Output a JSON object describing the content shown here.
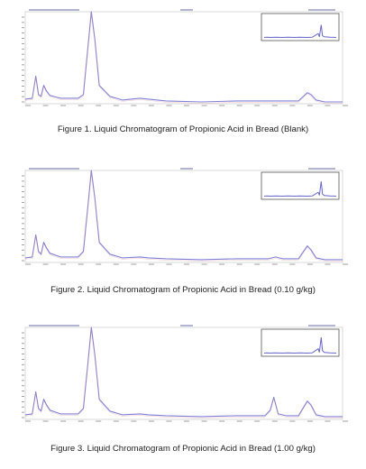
{
  "figures": [
    {
      "caption": "Figure 1. Liquid Chromatogram of Propionic Acid in Bread (Blank)",
      "chart_data": {
        "type": "line",
        "title": "",
        "xlabel": "",
        "ylabel": "",
        "xlim": [
          0,
          18
        ],
        "ylim": [
          0,
          100
        ],
        "series": [
          {
            "values": [
              [
                0,
                5
              ],
              [
                0.4,
                6
              ],
              [
                0.6,
                30
              ],
              [
                0.75,
                10
              ],
              [
                0.9,
                8
              ],
              [
                1.05,
                20
              ],
              [
                1.2,
                14
              ],
              [
                1.4,
                9
              ],
              [
                2,
                6
              ],
              [
                3,
                6
              ],
              [
                3.3,
                10
              ],
              [
                3.55,
                60
              ],
              [
                3.75,
                100
              ],
              [
                3.95,
                70
              ],
              [
                4.2,
                20
              ],
              [
                4.8,
                8
              ],
              [
                5.5,
                4
              ],
              [
                6.5,
                6
              ],
              [
                7,
                5
              ],
              [
                8,
                3
              ],
              [
                10,
                2
              ],
              [
                12,
                3
              ],
              [
                14,
                3
              ],
              [
                15.5,
                3
              ],
              [
                16,
                12
              ],
              [
                16.2,
                10
              ],
              [
                16.5,
                4
              ],
              [
                17,
                2
              ],
              [
                18,
                2
              ]
            ]
          }
        ],
        "inset": {
          "values": [
            [
              0,
              2
            ],
            [
              0.5,
              3
            ],
            [
              1,
              2
            ],
            [
              2,
              3
            ],
            [
              3,
              2
            ],
            [
              4,
              3
            ],
            [
              5,
              2
            ],
            [
              6,
              3
            ],
            [
              7,
              2
            ],
            [
              8,
              3
            ],
            [
              9,
              20
            ],
            [
              9.2,
              5
            ],
            [
              9.5,
              60
            ],
            [
              9.7,
              10
            ],
            [
              10,
              5
            ],
            [
              11,
              3
            ],
            [
              12,
              2
            ]
          ]
        }
      }
    },
    {
      "caption": "Figure 2. Liquid Chromatogram of Propionic Acid in Bread (0.10 g/kg)",
      "chart_data": {
        "type": "line",
        "title": "",
        "xlabel": "",
        "ylabel": "",
        "xlim": [
          0,
          18
        ],
        "ylim": [
          0,
          100
        ],
        "series": [
          {
            "values": [
              [
                0,
                5
              ],
              [
                0.4,
                6
              ],
              [
                0.6,
                30
              ],
              [
                0.75,
                12
              ],
              [
                0.9,
                9
              ],
              [
                1.05,
                22
              ],
              [
                1.2,
                16
              ],
              [
                1.4,
                10
              ],
              [
                2,
                6
              ],
              [
                3,
                6
              ],
              [
                3.3,
                12
              ],
              [
                3.55,
                60
              ],
              [
                3.75,
                100
              ],
              [
                3.95,
                70
              ],
              [
                4.2,
                22
              ],
              [
                4.8,
                9
              ],
              [
                5.5,
                5
              ],
              [
                6.5,
                6
              ],
              [
                7,
                5
              ],
              [
                8,
                4
              ],
              [
                10,
                3
              ],
              [
                12,
                4
              ],
              [
                13.8,
                4
              ],
              [
                14.2,
                6
              ],
              [
                14.6,
                4
              ],
              [
                15.5,
                4
              ],
              [
                16,
                18
              ],
              [
                16.2,
                14
              ],
              [
                16.5,
                5
              ],
              [
                17,
                3
              ],
              [
                18,
                3
              ]
            ]
          }
        ],
        "inset": {
          "values": [
            [
              0,
              2
            ],
            [
              0.5,
              3
            ],
            [
              1,
              2
            ],
            [
              2,
              3
            ],
            [
              3,
              2
            ],
            [
              4,
              3
            ],
            [
              5,
              2
            ],
            [
              6,
              3
            ],
            [
              7,
              2
            ],
            [
              8,
              3
            ],
            [
              9,
              20
            ],
            [
              9.2,
              6
            ],
            [
              9.5,
              70
            ],
            [
              9.7,
              12
            ],
            [
              10,
              5
            ],
            [
              11,
              3
            ],
            [
              12,
              2
            ]
          ]
        }
      }
    },
    {
      "caption": "Figure 3. Liquid Chromatogram of Propionic Acid in Bread (1.00 g/kg)",
      "chart_data": {
        "type": "line",
        "title": "",
        "xlabel": "",
        "ylabel": "",
        "xlim": [
          0,
          18
        ],
        "ylim": [
          0,
          100
        ],
        "series": [
          {
            "values": [
              [
                0,
                5
              ],
              [
                0.4,
                6
              ],
              [
                0.6,
                30
              ],
              [
                0.75,
                12
              ],
              [
                0.9,
                9
              ],
              [
                1.05,
                22
              ],
              [
                1.2,
                16
              ],
              [
                1.4,
                10
              ],
              [
                2,
                6
              ],
              [
                3,
                6
              ],
              [
                3.3,
                12
              ],
              [
                3.55,
                60
              ],
              [
                3.75,
                100
              ],
              [
                3.95,
                70
              ],
              [
                4.2,
                22
              ],
              [
                4.8,
                9
              ],
              [
                5.5,
                5
              ],
              [
                6.5,
                6
              ],
              [
                7,
                5
              ],
              [
                8,
                4
              ],
              [
                10,
                3
              ],
              [
                12,
                4
              ],
              [
                13.6,
                4
              ],
              [
                13.9,
                10
              ],
              [
                14.1,
                24
              ],
              [
                14.35,
                6
              ],
              [
                14.8,
                4
              ],
              [
                15.5,
                4
              ],
              [
                16,
                20
              ],
              [
                16.2,
                16
              ],
              [
                16.5,
                5
              ],
              [
                17,
                3
              ],
              [
                18,
                3
              ]
            ]
          }
        ],
        "inset": {
          "values": [
            [
              0,
              2
            ],
            [
              0.5,
              3
            ],
            [
              1,
              2
            ],
            [
              2,
              3
            ],
            [
              3,
              2
            ],
            [
              4,
              3
            ],
            [
              5,
              2
            ],
            [
              6,
              3
            ],
            [
              7,
              2
            ],
            [
              8,
              3
            ],
            [
              9,
              22
            ],
            [
              9.2,
              6
            ],
            [
              9.5,
              75
            ],
            [
              9.7,
              14
            ],
            [
              10,
              5
            ],
            [
              11,
              3
            ],
            [
              12,
              2
            ]
          ]
        }
      }
    }
  ],
  "colors": {
    "trace": "#8080d8",
    "trace2": "#e08080",
    "frame": "#cfcfcf",
    "inset": "#6666cc",
    "text": "#222222"
  }
}
